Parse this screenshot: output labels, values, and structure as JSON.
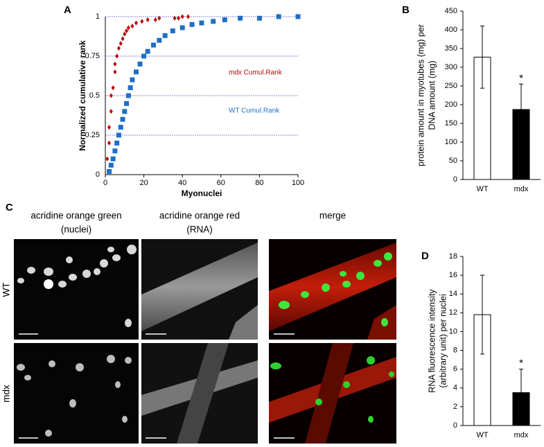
{
  "chart_data": [
    {
      "type": "scatter",
      "panel": "A",
      "xlabel": "Myonuclei",
      "ylabel": "Normalized cumulative rank",
      "xlim": [
        0,
        100
      ],
      "xticks": [
        0,
        20,
        40,
        60,
        80,
        100
      ],
      "ylim": [
        0,
        1
      ],
      "yticks": [
        0,
        0.25,
        0.5,
        0.75,
        1
      ],
      "grid": true,
      "series": [
        {
          "name": "mdx Cumul.Rank",
          "color": "#c00000",
          "x": [
            1,
            2,
            2,
            3,
            3,
            4,
            5,
            5,
            6,
            7,
            8,
            9,
            10,
            11,
            12,
            14,
            16,
            19,
            22,
            26,
            28,
            36,
            38,
            40,
            43
          ],
          "values": [
            0.1,
            0.2,
            0.3,
            0.4,
            0.5,
            0.55,
            0.65,
            0.7,
            0.75,
            0.8,
            0.83,
            0.86,
            0.89,
            0.91,
            0.93,
            0.94,
            0.96,
            0.97,
            0.98,
            0.98,
            0.99,
            0.99,
            0.99,
            1,
            1
          ]
        },
        {
          "name": "WT Cumul.Rank",
          "color": "#1f6fc5",
          "x": [
            2,
            3,
            4,
            5,
            6,
            7,
            8,
            9,
            10,
            11,
            12,
            13,
            14,
            16,
            18,
            20,
            22,
            25,
            28,
            31,
            35,
            40,
            45,
            50,
            56,
            62,
            70,
            80,
            90,
            100
          ],
          "values": [
            0.02,
            0.06,
            0.1,
            0.15,
            0.2,
            0.25,
            0.3,
            0.35,
            0.4,
            0.45,
            0.5,
            0.55,
            0.6,
            0.65,
            0.7,
            0.75,
            0.78,
            0.82,
            0.85,
            0.88,
            0.91,
            0.93,
            0.95,
            0.96,
            0.97,
            0.98,
            0.99,
            0.99,
            1,
            1
          ]
        }
      ]
    },
    {
      "type": "bar",
      "panel": "B",
      "ylabel": [
        "protein amount in myotubes (mg) per",
        "DNA amount (mg)"
      ],
      "categories": [
        "WT",
        "mdx"
      ],
      "values": [
        327,
        187
      ],
      "errors": [
        83,
        68
      ],
      "colors": [
        "#ffffff",
        "#000000"
      ],
      "significance": "*",
      "ylim": [
        0,
        450
      ],
      "yticks": [
        0,
        50,
        100,
        150,
        200,
        250,
        300,
        350,
        400,
        450
      ]
    },
    {
      "type": "bar",
      "panel": "D",
      "ylabel": [
        "RNA fluorescence intensity",
        "(arbitrary unit) per nuclei"
      ],
      "categories": [
        "WT",
        "mdx"
      ],
      "values": [
        11.8,
        3.5
      ],
      "errors": [
        4.2,
        2.5
      ],
      "colors": [
        "#ffffff",
        "#000000"
      ],
      "significance": "*",
      "ylim": [
        0,
        18
      ],
      "yticks": [
        0,
        2,
        4,
        6,
        8,
        10,
        12,
        14,
        16,
        18
      ]
    }
  ],
  "panel_c": {
    "panel": "C",
    "columns": [
      [
        "acridine orange green",
        "(nuclei)"
      ],
      [
        "acridine orange red",
        "(RNA)"
      ],
      [
        "merge"
      ]
    ],
    "rows": [
      "WT",
      "mdx"
    ]
  }
}
